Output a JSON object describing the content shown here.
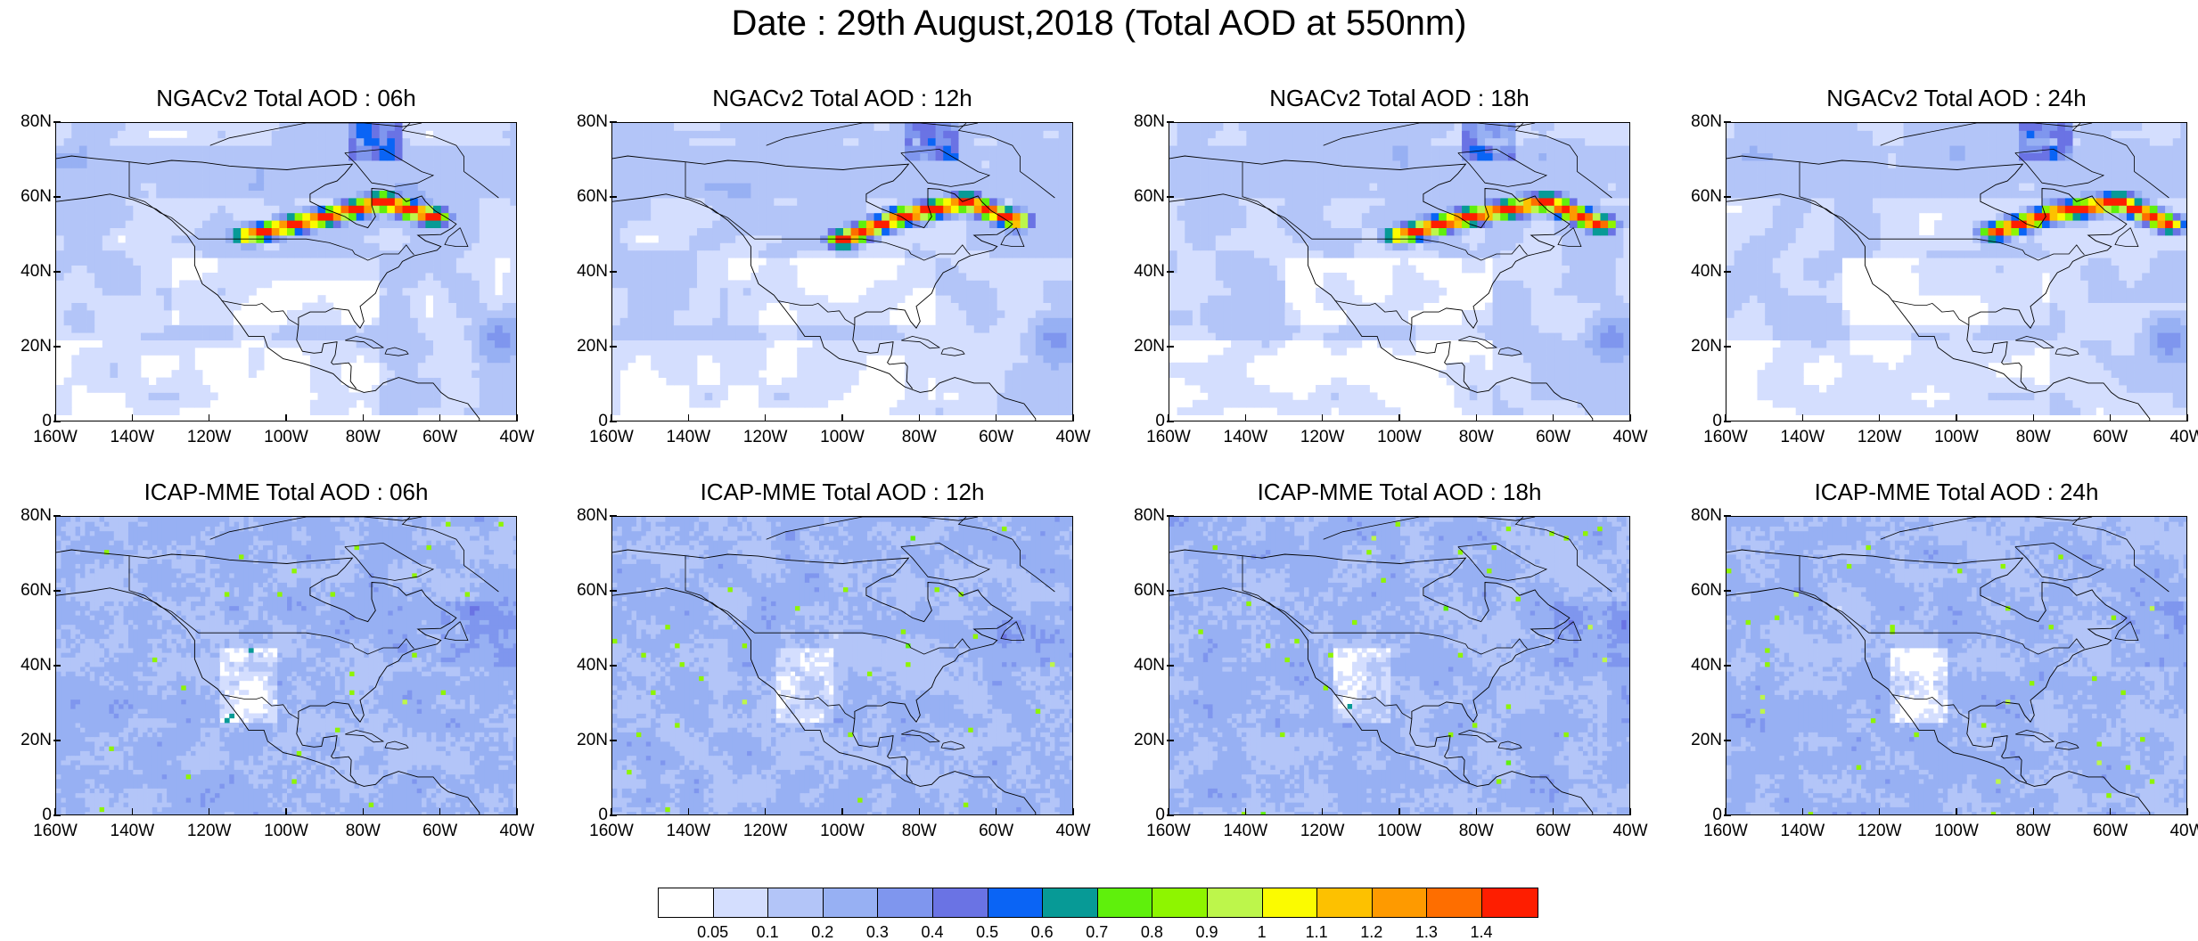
{
  "title": "Date : 29th August,2018 (Total AOD at 550nm)",
  "chart_data": {
    "type": "heatmap",
    "panels": [
      {
        "title": "NGACv2 Total AOD : 06h",
        "model": "NGACv2",
        "hour": "06h",
        "plume_lon": [
          -110,
          -90,
          -75,
          -62
        ],
        "plume_lat": [
          50,
          55,
          59,
          55
        ]
      },
      {
        "title": "NGACv2 Total AOD : 12h",
        "model": "NGACv2",
        "hour": "12h",
        "plume_lon": [
          -100,
          -85,
          -68,
          -55
        ],
        "plume_lat": [
          49,
          55,
          59,
          54
        ]
      },
      {
        "title": "NGACv2 Total AOD : 18h",
        "model": "NGACv2",
        "hour": "18h",
        "plume_lon": [
          -100,
          -82,
          -62,
          -48
        ],
        "plume_lat": [
          50,
          55,
          59,
          53
        ]
      },
      {
        "title": "NGACv2 Total AOD : 24h",
        "model": "NGACv2",
        "hour": "24h",
        "plume_lon": [
          -90,
          -75,
          -58,
          -45
        ],
        "plume_lat": [
          51,
          56,
          59,
          53
        ]
      },
      {
        "title": "ICAP-MME Total AOD : 06h",
        "model": "ICAP-MME",
        "hour": "06h"
      },
      {
        "title": "ICAP-MME Total AOD : 12h",
        "model": "ICAP-MME",
        "hour": "12h"
      },
      {
        "title": "ICAP-MME Total AOD : 18h",
        "model": "ICAP-MME",
        "hour": "18h"
      },
      {
        "title": "ICAP-MME Total AOD : 24h",
        "model": "ICAP-MME",
        "hour": "24h"
      }
    ],
    "lon_range": [
      -160,
      -40
    ],
    "lat_range": [
      0,
      80
    ],
    "x_ticks": [
      "160W",
      "140W",
      "120W",
      "100W",
      "80W",
      "60W",
      "40W"
    ],
    "y_ticks": [
      "0",
      "20N",
      "40N",
      "60N",
      "80N"
    ],
    "colorbar": {
      "labels": [
        "0.05",
        "0.1",
        "0.2",
        "0.3",
        "0.4",
        "0.5",
        "0.6",
        "0.7",
        "0.8",
        "0.9",
        "1",
        "1.1",
        "1.2",
        "1.3",
        "1.4"
      ],
      "colors": [
        "#ffffff",
        "#d4defe",
        "#b3c5f8",
        "#97b0f3",
        "#7f96ee",
        "#6a73e4",
        "#0a64f5",
        "#079a96",
        "#5ff00c",
        "#8ef500",
        "#bdf64b",
        "#fbfb00",
        "#fdc100",
        "#fe9a00",
        "#fe6e00",
        "#fe1e00"
      ]
    }
  }
}
